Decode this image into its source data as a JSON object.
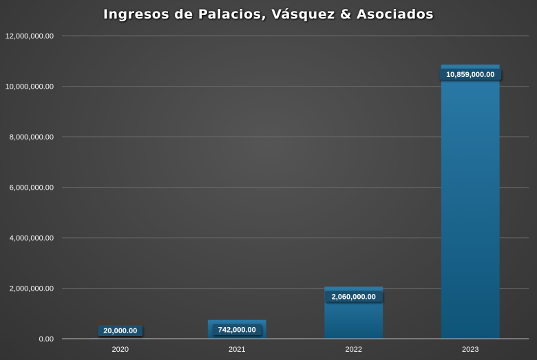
{
  "chart_data": {
    "type": "bar",
    "title": "Ingresos de Palacios, Vásquez & Asociados",
    "categories": [
      "2020",
      "2021",
      "2022",
      "2023"
    ],
    "values": [
      20000,
      742000,
      2060000,
      10859000
    ],
    "data_labels": [
      "20,000.00",
      "742,000.00",
      "2,060,000.00",
      "10,859,000.00"
    ],
    "y_ticks": [
      0,
      2000000,
      4000000,
      6000000,
      8000000,
      10000000,
      12000000
    ],
    "y_tick_labels": [
      "0.00",
      "2,000,000.00",
      "4,000,000.00",
      "6,000,000.00",
      "8,000,000.00",
      "10,000,000.00",
      "12,000,000.00"
    ],
    "ylim": [
      0,
      12000000
    ],
    "xlabel": "",
    "ylabel": "",
    "grid": true,
    "legend": "none",
    "colors": {
      "bar_top": "#2b7aa8",
      "bar_bottom": "#0f5478",
      "label_bg": "#1d4f6e",
      "label_text": "#ffffff",
      "first_label_text": "#ffd7b0",
      "grid": "#6a6a6a",
      "background": "#444444"
    }
  }
}
